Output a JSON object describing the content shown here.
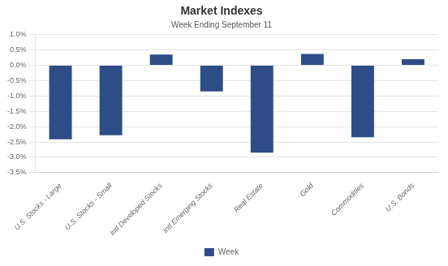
{
  "chart_data": {
    "type": "bar",
    "title": "Market Indexes",
    "subtitle": "Week Ending September 11",
    "categories": [
      "U.S. Stocks - Large",
      "U.S. Stocks - Small",
      "Intl Developed Stocks",
      "Intl Emerging Stocks",
      "Real Estate",
      "Gold",
      "Commodities",
      "U.S. Bonds"
    ],
    "series": [
      {
        "name": "Week",
        "color": "#2E4D87",
        "values": [
          -0.0241,
          -0.0228,
          0.0035,
          -0.0085,
          -0.0285,
          0.0037,
          -0.0235,
          0.002
        ]
      }
    ],
    "ylim": [
      -0.035,
      0.01
    ],
    "yticks": [
      {
        "value": -0.035,
        "label": "-3.5%"
      },
      {
        "value": -0.03,
        "label": "-3.0%"
      },
      {
        "value": -0.025,
        "label": "-2.5%"
      },
      {
        "value": -0.02,
        "label": "-2.0%"
      },
      {
        "value": -0.015,
        "label": "-1.5%"
      },
      {
        "value": -0.01,
        "label": "-1.0%"
      },
      {
        "value": -0.005,
        "label": "-0.5%"
      },
      {
        "value": 0,
        "label": "0.0%"
      },
      {
        "value": 0.005,
        "label": "0.5%"
      },
      {
        "value": 0.01,
        "label": "1.0%"
      }
    ],
    "grid": true,
    "legend": "bottom"
  }
}
